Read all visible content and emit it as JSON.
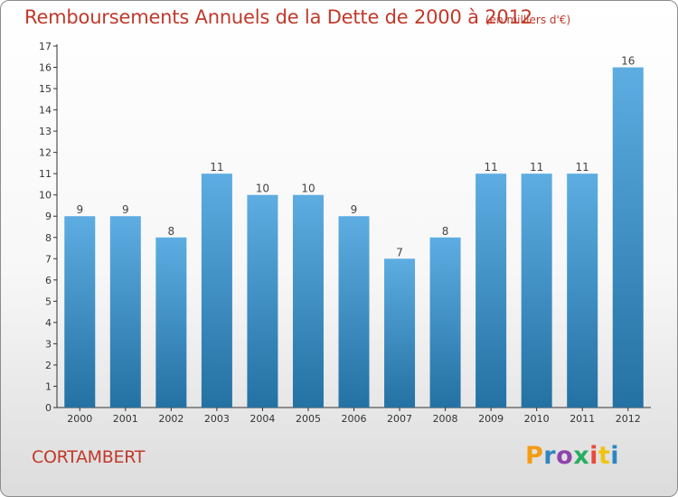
{
  "header": {
    "title": "Remboursements Annuels de la Dette de 2000 à 2012",
    "subtitle": "(en milliers d'€)"
  },
  "footer": {
    "commune": "CORTAMBERT",
    "logo": "Proxiti",
    "logo_colors": [
      "#f39c12",
      "#2e86c1",
      "#8e44ad",
      "#27ae60",
      "#e74c3c",
      "#f1c40f",
      "#2e86c1"
    ]
  },
  "colors": {
    "bar_top": "#5dade2",
    "bar_bottom": "#2471a3",
    "text_accent": "#c0392b",
    "axis": "#333333"
  },
  "chart_data": {
    "type": "bar",
    "categories": [
      "2000",
      "2001",
      "2002",
      "2003",
      "2004",
      "2005",
      "2006",
      "2007",
      "2008",
      "2009",
      "2010",
      "2011",
      "2012"
    ],
    "values": [
      9,
      9,
      8,
      11,
      10,
      10,
      9,
      7,
      8,
      11,
      11,
      11,
      16
    ],
    "value_labels": [
      "9",
      "9",
      "8",
      "11",
      "10",
      "10",
      "9",
      "7",
      "8",
      "11",
      "11",
      "11",
      "16"
    ],
    "yticks": [
      0,
      1,
      2,
      3,
      4,
      5,
      6,
      7,
      8,
      9,
      10,
      11,
      12,
      13,
      14,
      15,
      16,
      17
    ],
    "ylim": [
      0,
      17
    ],
    "grid": false,
    "legend": "none"
  }
}
